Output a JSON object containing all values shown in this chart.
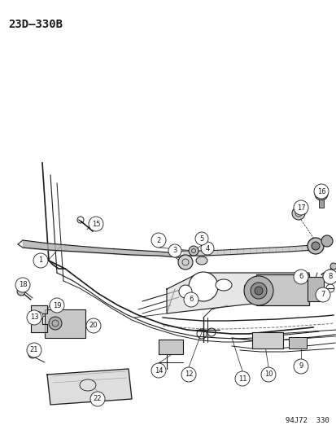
{
  "title": "23D–330B",
  "footer": "94J72  330",
  "bg_color": "#ffffff",
  "line_color": "#1a1a1a",
  "title_font_size": 10,
  "footer_font_size": 6.5,
  "fig_w": 4.14,
  "fig_h": 5.33,
  "dpi": 100
}
